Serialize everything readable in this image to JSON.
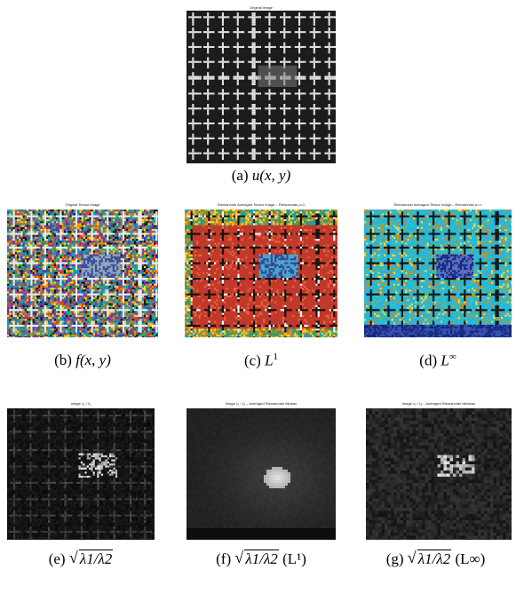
{
  "panels": [
    {
      "id": "a",
      "title": "Original Image",
      "caption_prefix": "(a)",
      "caption_math": "u(x, y)",
      "kind": "original"
    },
    {
      "id": "b",
      "title": "Original Tensor Image",
      "caption_prefix": "(b)",
      "caption_math": "f(x, y)",
      "kind": "tensor"
    },
    {
      "id": "c",
      "title": "Riemannian Averaged Tensor Image – Riemannian p=1",
      "caption_prefix": "(c)",
      "caption_math": "L",
      "caption_sup": "1",
      "kind": "tensor-l1"
    },
    {
      "id": "d",
      "title": "Riemannian Averaged Tensor Image – Riemannian p=∞",
      "caption_prefix": "(d)",
      "caption_math": "L",
      "caption_sup": "∞",
      "kind": "tensor-linf"
    },
    {
      "id": "e",
      "title": "Image λ₁ / λ₂",
      "caption_prefix": "(e)",
      "caption_math": "λ1/λ2",
      "kind": "eig"
    },
    {
      "id": "f",
      "title": "Image λ₁ / λ₂ – Averaged Riemannian Median",
      "caption_prefix": "(f)",
      "caption_math": "λ1/λ2",
      "caption_suffix": "(L¹)",
      "kind": "eig-median"
    },
    {
      "id": "g",
      "title": "Image λ₁ / λ₂ – Averaged Riemannian Minimax",
      "caption_prefix": "(g)",
      "caption_math": "λ1/λ2",
      "caption_suffix": "(L∞)",
      "kind": "eig-minimax"
    }
  ],
  "colors": {
    "background": "#ffffff",
    "pattern_light": "#dcdcdc",
    "pattern_dark": "#1a1a1a"
  }
}
